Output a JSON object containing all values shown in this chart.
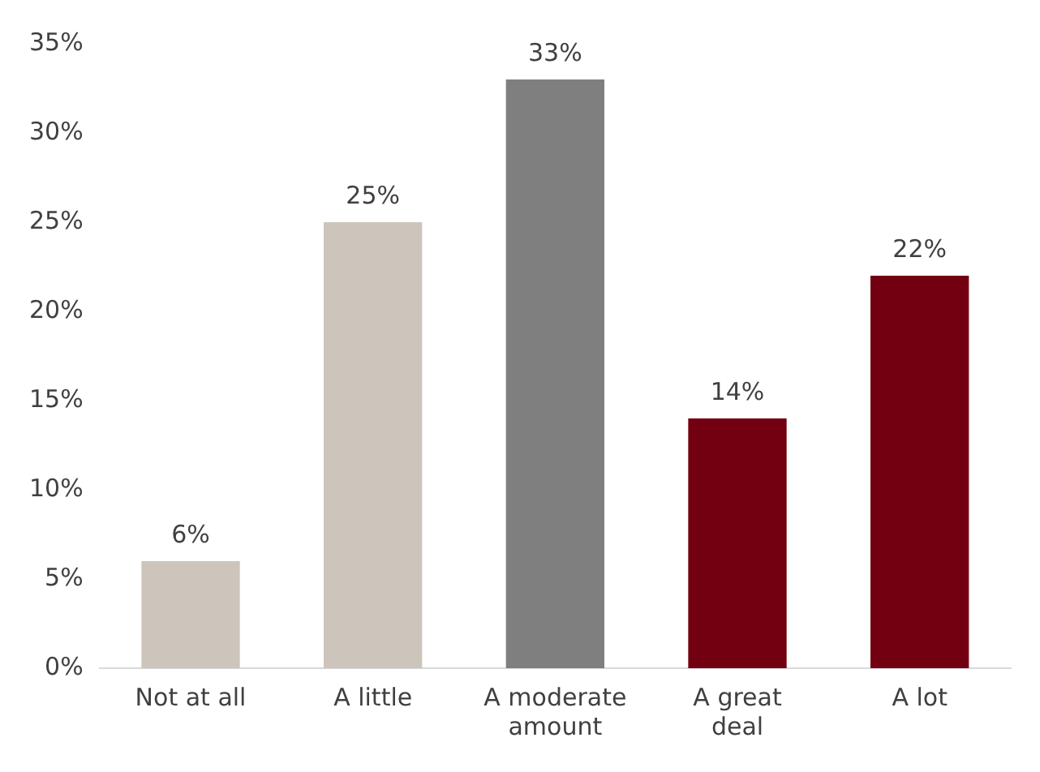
{
  "chart_data": {
    "type": "bar",
    "categories": [
      "Not at all",
      "A little",
      "A moderate amount",
      "A great deal",
      "A lot"
    ],
    "values": [
      6,
      25,
      33,
      14,
      22
    ],
    "colors": [
      "#cdc5bb",
      "#cdc5bb",
      "#7f7f7f",
      "#720010",
      "#720010"
    ],
    "ylim": [
      0,
      35
    ],
    "yticks": [
      {
        "value": 0,
        "label": "0%"
      },
      {
        "value": 5,
        "label": "5%"
      },
      {
        "value": 10,
        "label": "10%"
      },
      {
        "value": 15,
        "label": "15%"
      },
      {
        "value": 20,
        "label": "20%"
      },
      {
        "value": 25,
        "label": "25%"
      },
      {
        "value": 30,
        "label": "30%"
      },
      {
        "value": 35,
        "label": "35%"
      }
    ],
    "value_labels": [
      "6%",
      "25%",
      "33%",
      "14%",
      "22%"
    ],
    "grid": false,
    "legend": false
  }
}
